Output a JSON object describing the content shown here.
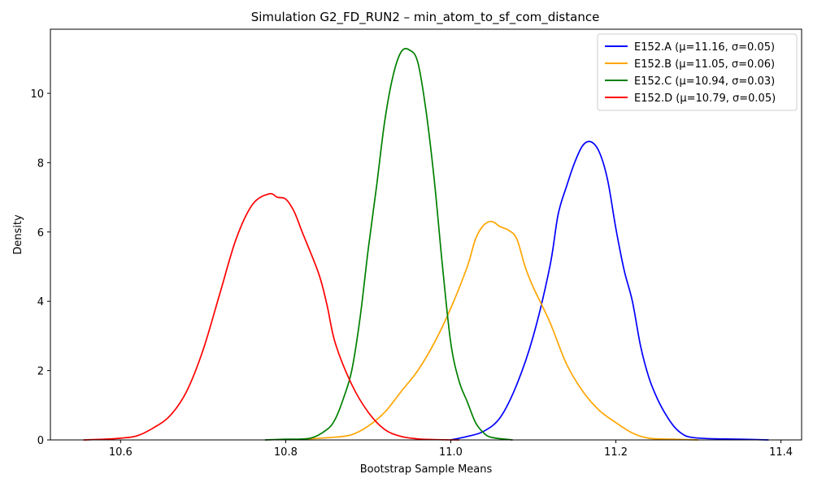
{
  "chart_data": {
    "type": "line",
    "title": "Simulation G2_FD_RUN2 – min_atom_to_sf_com_distance",
    "xlabel": "Bootstrap Sample Means",
    "ylabel": "Density",
    "xlim": [
      10.515,
      11.425
    ],
    "ylim": [
      0,
      11.85
    ],
    "x_ticks": [
      10.6,
      10.8,
      11.0,
      11.2,
      11.4
    ],
    "x_tick_labels": [
      "10.6",
      "10.8",
      "11.0",
      "11.2",
      "11.4"
    ],
    "y_ticks": [
      0,
      2,
      4,
      6,
      8,
      10
    ],
    "y_tick_labels": [
      "0",
      "2",
      "4",
      "6",
      "8",
      "10"
    ],
    "grid": false,
    "legend_position": "top-right",
    "series": [
      {
        "name": "E152.A (μ=11.16, σ=0.05)",
        "color": "#0000ff",
        "points": [
          [
            11.0,
            0.0
          ],
          [
            11.02,
            0.1
          ],
          [
            11.04,
            0.25
          ],
          [
            11.06,
            0.65
          ],
          [
            11.08,
            1.6
          ],
          [
            11.1,
            3.0
          ],
          [
            11.12,
            5.0
          ],
          [
            11.13,
            6.5
          ],
          [
            11.14,
            7.3
          ],
          [
            11.15,
            8.0
          ],
          [
            11.16,
            8.5
          ],
          [
            11.17,
            8.6
          ],
          [
            11.18,
            8.3
          ],
          [
            11.19,
            7.5
          ],
          [
            11.2,
            6.1
          ],
          [
            11.21,
            4.9
          ],
          [
            11.22,
            4.0
          ],
          [
            11.23,
            2.7
          ],
          [
            11.24,
            1.8
          ],
          [
            11.25,
            1.2
          ],
          [
            11.26,
            0.75
          ],
          [
            11.27,
            0.4
          ],
          [
            11.28,
            0.18
          ],
          [
            11.29,
            0.08
          ],
          [
            11.31,
            0.04
          ],
          [
            11.35,
            0.02
          ],
          [
            11.385,
            0.0
          ]
        ]
      },
      {
        "name": "E152.B (μ=11.05, σ=0.06)",
        "color": "#ffa500",
        "points": [
          [
            10.82,
            0.02
          ],
          [
            10.86,
            0.08
          ],
          [
            10.88,
            0.15
          ],
          [
            10.9,
            0.4
          ],
          [
            10.92,
            0.8
          ],
          [
            10.94,
            1.4
          ],
          [
            10.96,
            2.0
          ],
          [
            10.98,
            2.8
          ],
          [
            11.0,
            3.8
          ],
          [
            11.02,
            5.0
          ],
          [
            11.03,
            5.8
          ],
          [
            11.04,
            6.2
          ],
          [
            11.05,
            6.3
          ],
          [
            11.06,
            6.15
          ],
          [
            11.07,
            6.05
          ],
          [
            11.08,
            5.8
          ],
          [
            11.09,
            5.0
          ],
          [
            11.1,
            4.4
          ],
          [
            11.12,
            3.4
          ],
          [
            11.14,
            2.2
          ],
          [
            11.16,
            1.4
          ],
          [
            11.18,
            0.85
          ],
          [
            11.2,
            0.5
          ],
          [
            11.22,
            0.2
          ],
          [
            11.24,
            0.05
          ],
          [
            11.27,
            0.02
          ],
          [
            11.3,
            0.0
          ]
        ]
      },
      {
        "name": "E152.C (μ=10.94, σ=0.03)",
        "color": "#008000",
        "points": [
          [
            10.775,
            0.0
          ],
          [
            10.8,
            0.02
          ],
          [
            10.83,
            0.05
          ],
          [
            10.85,
            0.3
          ],
          [
            10.86,
            0.6
          ],
          [
            10.87,
            1.2
          ],
          [
            10.88,
            2.0
          ],
          [
            10.89,
            3.5
          ],
          [
            10.9,
            5.5
          ],
          [
            10.91,
            7.3
          ],
          [
            10.92,
            9.2
          ],
          [
            10.93,
            10.5
          ],
          [
            10.94,
            11.2
          ],
          [
            10.95,
            11.25
          ],
          [
            10.96,
            10.9
          ],
          [
            10.97,
            9.5
          ],
          [
            10.98,
            7.5
          ],
          [
            10.99,
            5.0
          ],
          [
            11.0,
            2.8
          ],
          [
            11.01,
            1.7
          ],
          [
            11.02,
            1.1
          ],
          [
            11.03,
            0.5
          ],
          [
            11.04,
            0.2
          ],
          [
            11.05,
            0.07
          ],
          [
            11.075,
            0.0
          ]
        ]
      },
      {
        "name": "E152.D (μ=10.79, σ=0.05)",
        "color": "#ff0000",
        "points": [
          [
            10.555,
            0.0
          ],
          [
            10.58,
            0.02
          ],
          [
            10.6,
            0.05
          ],
          [
            10.62,
            0.12
          ],
          [
            10.64,
            0.35
          ],
          [
            10.66,
            0.7
          ],
          [
            10.68,
            1.4
          ],
          [
            10.7,
            2.6
          ],
          [
            10.72,
            4.2
          ],
          [
            10.74,
            5.8
          ],
          [
            10.76,
            6.8
          ],
          [
            10.78,
            7.1
          ],
          [
            10.79,
            7.0
          ],
          [
            10.8,
            6.95
          ],
          [
            10.81,
            6.6
          ],
          [
            10.82,
            6.0
          ],
          [
            10.84,
            4.8
          ],
          [
            10.85,
            3.9
          ],
          [
            10.86,
            2.8
          ],
          [
            10.88,
            1.6
          ],
          [
            10.9,
            0.8
          ],
          [
            10.92,
            0.3
          ],
          [
            10.94,
            0.1
          ],
          [
            10.96,
            0.03
          ],
          [
            10.98,
            0.01
          ],
          [
            11.01,
            0.0
          ]
        ]
      }
    ]
  }
}
